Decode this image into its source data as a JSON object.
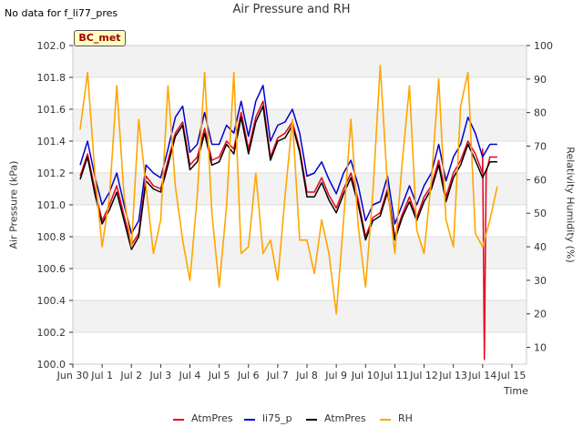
{
  "title": "Air Pressure and RH",
  "nodata_text": "No data for f_li77_pres",
  "badge": "BC_met",
  "chart_data": {
    "type": "line",
    "title": "Air Pressure and RH",
    "xlabel": "Time",
    "ylabel": "Air Pressure (kPa)",
    "y2label": "Relativity Humidity (%)",
    "xlim": [
      0,
      15.5
    ],
    "ylim": [
      100.0,
      102.0
    ],
    "y2lim": [
      5,
      100
    ],
    "x_ticks": [
      {
        "x": 0,
        "label": "Jun 30"
      },
      {
        "x": 1,
        "label": "Jul 1"
      },
      {
        "x": 2,
        "label": "Jul 2"
      },
      {
        "x": 3,
        "label": "Jul 3"
      },
      {
        "x": 4,
        "label": "Jul 4"
      },
      {
        "x": 5,
        "label": "Jul 5"
      },
      {
        "x": 6,
        "label": "Jul 6"
      },
      {
        "x": 7,
        "label": "Jul 7"
      },
      {
        "x": 8,
        "label": "Jul 8"
      },
      {
        "x": 9,
        "label": "Jul 9"
      },
      {
        "x": 10,
        "label": "Jul 10"
      },
      {
        "x": 11,
        "label": "Jul 11"
      },
      {
        "x": 12,
        "label": "Jul 12"
      },
      {
        "x": 13,
        "label": "Jul 13"
      },
      {
        "x": 14,
        "label": "Jul 14"
      },
      {
        "x": 15,
        "label": "Jul 15"
      }
    ],
    "y_ticks": [
      "100.0",
      "100.2",
      "100.4",
      "100.6",
      "100.8",
      "101.0",
      "101.2",
      "101.4",
      "101.6",
      "101.8",
      "102.0"
    ],
    "y2_ticks": [
      "10",
      "20",
      "30",
      "40",
      "50",
      "60",
      "70",
      "80",
      "90",
      "100"
    ],
    "grid": true,
    "legend_position": "bottom",
    "x": [
      0.25,
      0.5,
      0.75,
      1.0,
      1.25,
      1.5,
      1.75,
      2.0,
      2.25,
      2.5,
      2.75,
      3.0,
      3.25,
      3.5,
      3.75,
      4.0,
      4.25,
      4.5,
      4.75,
      5.0,
      5.25,
      5.5,
      5.75,
      6.0,
      6.25,
      6.5,
      6.75,
      7.0,
      7.25,
      7.5,
      7.75,
      8.0,
      8.25,
      8.5,
      8.75,
      9.0,
      9.25,
      9.5,
      9.75,
      10.0,
      10.25,
      10.5,
      10.75,
      11.0,
      11.25,
      11.5,
      11.75,
      12.0,
      12.25,
      12.5,
      12.75,
      13.0,
      13.25,
      13.5,
      13.75,
      14.0,
      14.25,
      14.5
    ],
    "series": [
      {
        "name": "AtmPres",
        "axis": "left",
        "color": "#e8001c",
        "values": [
          101.18,
          101.32,
          101.1,
          100.9,
          101.0,
          101.12,
          100.93,
          100.75,
          100.82,
          101.18,
          101.12,
          101.1,
          101.28,
          101.45,
          101.52,
          101.25,
          101.3,
          101.48,
          101.28,
          101.3,
          101.4,
          101.35,
          101.58,
          101.35,
          101.55,
          101.65,
          101.3,
          101.42,
          101.45,
          101.52,
          101.35,
          101.08,
          101.08,
          101.17,
          101.06,
          100.98,
          101.1,
          101.2,
          101.03,
          100.8,
          100.92,
          100.95,
          101.1,
          100.8,
          100.94,
          101.05,
          100.92,
          101.05,
          101.12,
          101.28,
          101.05,
          101.2,
          101.28,
          101.4,
          101.32,
          101.2,
          101.3,
          101.3
        ],
        "extra_points": [
          [
            14.0,
            101.35
          ],
          [
            14.06,
            100.03
          ],
          [
            14.12,
            101.2
          ]
        ]
      },
      {
        "name": "li75_p",
        "axis": "left",
        "color": "#0000cc",
        "values": [
          101.25,
          101.4,
          101.18,
          101.0,
          101.08,
          101.2,
          101.0,
          100.82,
          100.9,
          101.25,
          101.2,
          101.17,
          101.35,
          101.55,
          101.62,
          101.33,
          101.38,
          101.58,
          101.38,
          101.38,
          101.5,
          101.45,
          101.65,
          101.43,
          101.65,
          101.75,
          101.4,
          101.5,
          101.52,
          101.6,
          101.45,
          101.18,
          101.2,
          101.27,
          101.16,
          101.07,
          101.2,
          101.28,
          101.12,
          100.9,
          101.0,
          101.02,
          101.18,
          100.88,
          101.0,
          101.12,
          101.0,
          101.12,
          101.2,
          101.38,
          101.15,
          101.3,
          101.38,
          101.55,
          101.45,
          101.3,
          101.38,
          101.38
        ]
      },
      {
        "name": "AtmPres",
        "axis": "left",
        "color": "#000000",
        "values": [
          101.16,
          101.3,
          101.07,
          100.88,
          100.97,
          101.08,
          100.9,
          100.72,
          100.8,
          101.15,
          101.1,
          101.08,
          101.25,
          101.43,
          101.5,
          101.22,
          101.27,
          101.45,
          101.25,
          101.27,
          101.38,
          101.32,
          101.55,
          101.32,
          101.52,
          101.62,
          101.28,
          101.4,
          101.42,
          101.5,
          101.33,
          101.05,
          101.05,
          101.14,
          101.03,
          100.95,
          101.07,
          101.17,
          101.0,
          100.78,
          100.9,
          100.93,
          101.08,
          100.78,
          100.92,
          101.02,
          100.9,
          101.02,
          101.1,
          101.25,
          101.02,
          101.17,
          101.25,
          101.38,
          101.28,
          101.17,
          101.27,
          101.27
        ]
      },
      {
        "name": "RH",
        "axis": "right",
        "color": "#ffa500",
        "values": [
          75,
          92,
          62,
          40,
          55,
          88,
          55,
          40,
          78,
          58,
          38,
          48,
          88,
          58,
          42,
          30,
          55,
          92,
          50,
          28,
          52,
          92,
          38,
          40,
          62,
          38,
          42,
          30,
          55,
          78,
          42,
          42,
          32,
          48,
          38,
          20,
          48,
          78,
          46,
          28,
          56,
          94,
          58,
          38,
          65,
          88,
          45,
          38,
          60,
          90,
          48,
          40,
          82,
          92,
          44,
          40,
          48,
          58
        ]
      }
    ]
  }
}
